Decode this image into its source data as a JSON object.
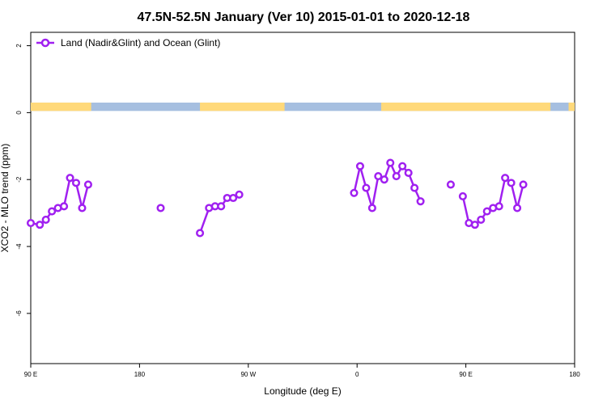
{
  "chart_data": {
    "type": "line",
    "title": "47.5N-52.5N January (Ver 10)   2015-01-01 to 2020-12-18",
    "xlabel": "Longitude (deg E)",
    "ylabel": "XCO2 - MLO trend (ppm)",
    "xlim": [
      90,
      540
    ],
    "ylim": [
      -7.5,
      2.4
    ],
    "x_ticks": [
      {
        "value": 90,
        "label": "90 E"
      },
      {
        "value": 180,
        "label": "180"
      },
      {
        "value": 270,
        "label": "90 W"
      },
      {
        "value": 360,
        "label": "0"
      },
      {
        "value": 450,
        "label": "90 E"
      },
      {
        "value": 540,
        "label": "180"
      }
    ],
    "y_ticks": [
      {
        "value": 2,
        "label": "2"
      },
      {
        "value": 0,
        "label": "0"
      },
      {
        "value": -2,
        "label": "-2"
      },
      {
        "value": -4,
        "label": "-4"
      },
      {
        "value": -6,
        "label": "-6"
      }
    ],
    "legend_position": "top-left",
    "grid": false,
    "series": [
      {
        "name": "Land (Nadir&Glint) and Ocean (Glint)",
        "color": "#a020f0",
        "segments": [
          [
            [
              90,
              -3.3
            ],
            [
              97.5,
              -3.35
            ],
            [
              102.5,
              -3.2
            ],
            [
              107.5,
              -2.95
            ],
            [
              112.5,
              -2.85
            ],
            [
              117.5,
              -2.8
            ],
            [
              122.5,
              -1.95
            ],
            [
              127.5,
              -2.1
            ],
            [
              132.5,
              -2.85
            ],
            [
              137.5,
              -2.15
            ]
          ],
          [
            [
              197.5,
              -2.85
            ]
          ],
          [
            [
              230,
              -3.6
            ],
            [
              237.5,
              -2.85
            ],
            [
              242.5,
              -2.8
            ],
            [
              247.5,
              -2.8
            ],
            [
              252.5,
              -2.55
            ],
            [
              257.5,
              -2.55
            ],
            [
              262.5,
              -2.45
            ]
          ],
          [
            [
              357.5,
              -2.4
            ],
            [
              362.5,
              -1.6
            ],
            [
              367.5,
              -2.25
            ],
            [
              372.5,
              -2.85
            ],
            [
              377.5,
              -1.9
            ],
            [
              382.5,
              -2.0
            ],
            [
              387.5,
              -1.5
            ],
            [
              392.5,
              -1.9
            ],
            [
              397.5,
              -1.6
            ],
            [
              402.5,
              -1.8
            ],
            [
              407.5,
              -2.25
            ],
            [
              412.5,
              -2.65
            ]
          ],
          [
            [
              437.5,
              -2.15
            ]
          ],
          [
            [
              447.5,
              -2.5
            ],
            [
              452.5,
              -3.3
            ],
            [
              457.5,
              -3.35
            ],
            [
              462.5,
              -3.2
            ],
            [
              467.5,
              -2.95
            ],
            [
              472.5,
              -2.85
            ],
            [
              477.5,
              -2.8
            ],
            [
              482.5,
              -1.95
            ],
            [
              487.5,
              -2.1
            ],
            [
              492.5,
              -2.85
            ],
            [
              497.5,
              -2.15
            ]
          ]
        ]
      }
    ],
    "surface_band": {
      "y_range": [
        0.05,
        0.3
      ],
      "land_color": "#ffd97a",
      "ocean_color": "#a6bfe0",
      "land_spans": [
        [
          90,
          140
        ],
        [
          230,
          300
        ],
        [
          380,
          520
        ],
        [
          535,
          540
        ]
      ]
    }
  }
}
